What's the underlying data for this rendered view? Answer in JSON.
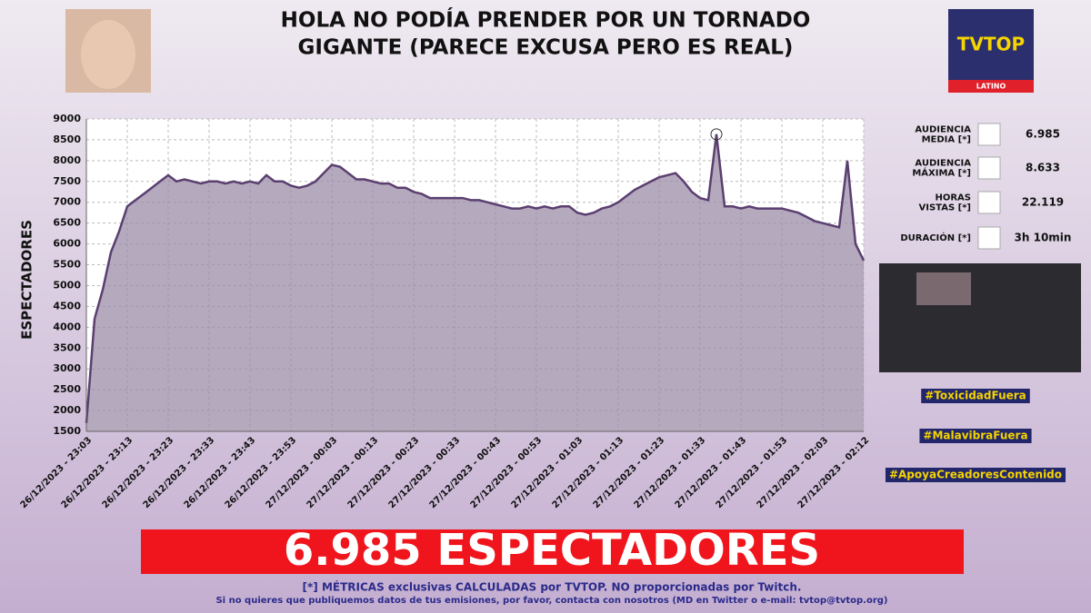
{
  "header": {
    "title_lines": [
      "HOLA   NO PODÍA PRENDER POR UN TORNADO",
      "GIGANTE   (PARECE EXCUSA PERO ES REAL)"
    ],
    "logo": "TVTOP",
    "logo_sub": "LATINO"
  },
  "chart_data": {
    "type": "area",
    "ylabel": "ESPECTADORES",
    "color": "#5b3f70",
    "fill": "#9c8ca8",
    "grid": true,
    "ylim": [
      1500,
      9000
    ],
    "yticks": [
      1500,
      2000,
      2500,
      3000,
      3500,
      4000,
      4500,
      5000,
      5500,
      6000,
      6500,
      7000,
      7500,
      8000,
      8500,
      9000
    ],
    "categories": [
      "26/12/2023 - 23:03",
      null,
      null,
      null,
      null,
      "26/12/2023 - 23:13",
      null,
      null,
      null,
      null,
      "26/12/2023 - 23:23",
      null,
      null,
      null,
      null,
      "26/12/2023 - 23:33",
      null,
      null,
      null,
      null,
      "26/12/2023 - 23:43",
      null,
      null,
      null,
      null,
      "26/12/2023 - 23:53",
      null,
      null,
      null,
      null,
      "27/12/2023 - 00:03",
      null,
      null,
      null,
      null,
      "27/12/2023 - 00:13",
      null,
      null,
      null,
      null,
      "27/12/2023 - 00:23",
      null,
      null,
      null,
      null,
      "27/12/2023 - 00:33",
      null,
      null,
      null,
      null,
      "27/12/2023 - 00:43",
      null,
      null,
      null,
      null,
      "27/12/2023 - 00:53",
      null,
      null,
      null,
      null,
      "27/12/2023 - 01:03",
      null,
      null,
      null,
      null,
      "27/12/2023 - 01:13",
      null,
      null,
      null,
      null,
      "27/12/2023 - 01:23",
      null,
      null,
      null,
      null,
      "27/12/2023 - 01:33",
      null,
      null,
      null,
      null,
      "27/12/2023 - 01:43",
      null,
      null,
      null,
      null,
      "27/12/2023 - 01:53",
      null,
      null,
      null,
      null,
      "27/12/2023 - 02:03",
      null,
      null,
      null,
      null,
      "27/12/2023 - 02:12"
    ],
    "values": [
      1700,
      4200,
      4900,
      5800,
      6300,
      6900,
      7050,
      7200,
      7350,
      7500,
      7650,
      7500,
      7550,
      7500,
      7450,
      7500,
      7500,
      7450,
      7500,
      7450,
      7500,
      7450,
      7650,
      7500,
      7500,
      7400,
      7350,
      7400,
      7500,
      7700,
      7900,
      7850,
      7700,
      7550,
      7550,
      7500,
      7450,
      7450,
      7350,
      7350,
      7250,
      7200,
      7100,
      7100,
      7100,
      7100,
      7100,
      7050,
      7050,
      7000,
      6950,
      6900,
      6850,
      6850,
      6900,
      6850,
      6900,
      6850,
      6900,
      6900,
      6750,
      6700,
      6750,
      6850,
      6900,
      7000,
      7150,
      7300,
      7400,
      7500,
      7600,
      7650,
      7700,
      7500,
      7250,
      7100,
      7050,
      8633,
      6900,
      6900,
      6850,
      6900,
      6850,
      6850,
      6850,
      6850,
      6800,
      6750,
      6650,
      6550,
      6500,
      6450,
      6400,
      8000,
      6000,
      5600
    ]
  },
  "stats": [
    {
      "label": [
        "AUDIENCIA",
        "MEDIA [*]"
      ],
      "value": "6.985"
    },
    {
      "label": [
        "AUDIENCIA",
        "MÁXIMA [*]"
      ],
      "value": "8.633"
    },
    {
      "label": [
        "HORAS",
        "VISTAS [*]"
      ],
      "value": "22.119"
    },
    {
      "label": [
        "DURACIÓN [*]"
      ],
      "value": "3h 10min"
    }
  ],
  "hashtags": [
    "#ToxicidadFuera",
    "#MalavibraFuera",
    "#ApoyaCreadoresContenido"
  ],
  "banner": "6.985 ESPECTADORES",
  "footer": [
    "[*] MÉTRICAS exclusivas CALCULADAS por TVTOP. NO proporcionadas por Twitch.",
    "Si no quieres que publiquemos datos de tus emisiones, por favor, contacta con nosotros (MD en Twitter o e-mail: tvtop@tvtop.org)"
  ]
}
